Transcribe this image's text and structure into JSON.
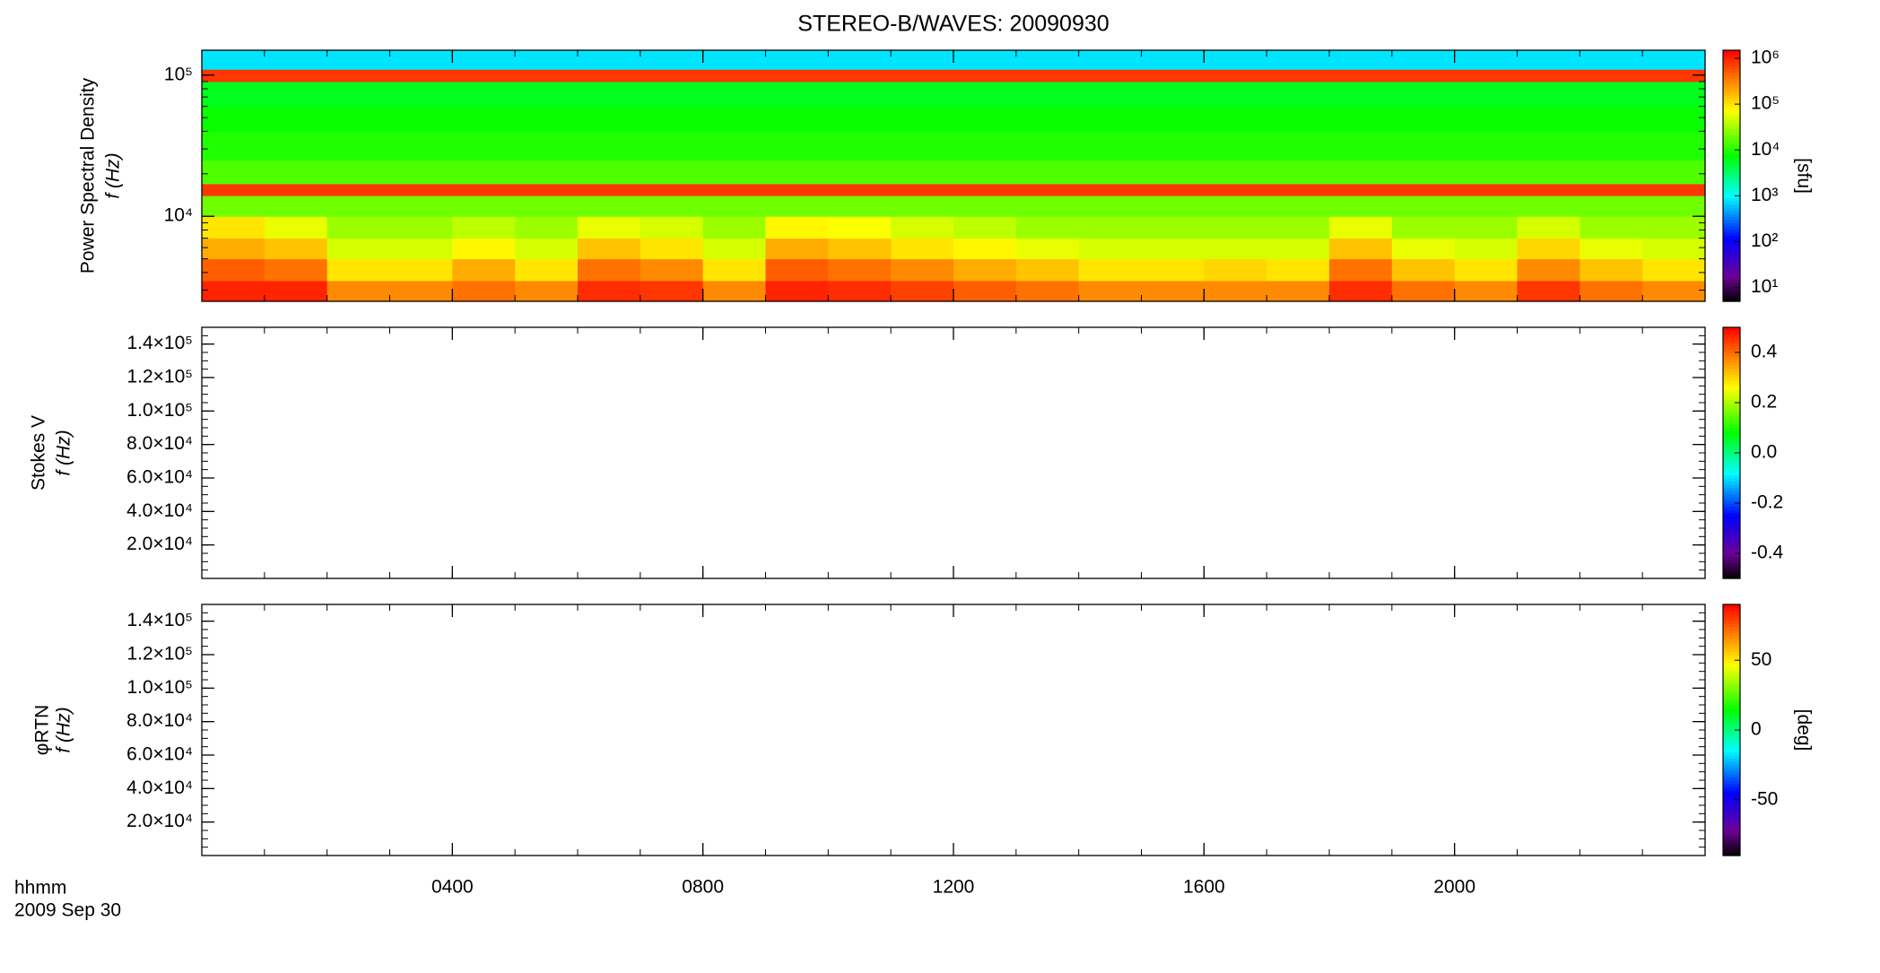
{
  "chart_data": [
    {
      "type": "heatmap",
      "title": "STEREO-B/WAVES: 20090930",
      "ylabel": [
        "Power Spectral Density",
        "f (Hz)"
      ],
      "yscale": "log",
      "ylim": [
        2500,
        150000
      ],
      "yticks": [
        {
          "value": 10000,
          "label": "10⁴"
        },
        {
          "value": 100000,
          "label": "10⁵"
        }
      ],
      "cscale": "log",
      "clim": [
        5,
        1500000
      ],
      "cticks": [
        {
          "value": 10,
          "label": "10¹"
        },
        {
          "value": 100,
          "label": "10²"
        },
        {
          "value": 1000,
          "label": "10³"
        },
        {
          "value": 10000,
          "label": "10⁴"
        },
        {
          "value": 100000,
          "label": "10⁵"
        },
        {
          "value": 1000000,
          "label": "10⁶"
        }
      ],
      "clabel": "[sfu]",
      "x": [
        0,
        1,
        2,
        3,
        4,
        5,
        6,
        7,
        8,
        9,
        10,
        11,
        12,
        13,
        14,
        15,
        16,
        17,
        18,
        19,
        20,
        21,
        22,
        23,
        24
      ],
      "y": [
        2500,
        3500,
        5000,
        7000,
        10000,
        14000,
        17000,
        25000,
        40000,
        60000,
        90000,
        110000,
        150000
      ],
      "z": [
        [
          1000000,
          1000000,
          300000,
          300000,
          400000,
          300000,
          900000,
          800000,
          300000,
          1000000,
          900000,
          700000,
          500000,
          400000,
          300000,
          300000,
          300000,
          300000,
          900000,
          400000,
          300000,
          800000,
          400000,
          300000
        ],
        [
          500000,
          400000,
          100000,
          100000,
          200000,
          100000,
          400000,
          300000,
          100000,
          500000,
          400000,
          300000,
          200000,
          150000,
          100000,
          100000,
          120000,
          100000,
          400000,
          150000,
          100000,
          300000,
          150000,
          100000
        ],
        [
          200000,
          150000,
          50000,
          50000,
          80000,
          50000,
          150000,
          100000,
          50000,
          200000,
          150000,
          100000,
          80000,
          60000,
          50000,
          50000,
          50000,
          50000,
          150000,
          60000,
          50000,
          120000,
          60000,
          50000
        ],
        [
          100000,
          60000,
          30000,
          30000,
          40000,
          30000,
          60000,
          50000,
          30000,
          80000,
          70000,
          50000,
          40000,
          30000,
          30000,
          30000,
          30000,
          30000,
          60000,
          30000,
          30000,
          50000,
          30000,
          30000
        ],
        [
          20000,
          20000,
          20000,
          20000,
          20000,
          20000,
          20000,
          20000,
          20000,
          20000,
          20000,
          20000,
          20000,
          20000,
          20000,
          20000,
          20000,
          20000,
          20000,
          20000,
          20000,
          20000,
          20000,
          20000
        ],
        [
          800000,
          800000,
          800000,
          800000,
          800000,
          800000,
          800000,
          800000,
          800000,
          800000,
          800000,
          800000,
          800000,
          800000,
          800000,
          800000,
          800000,
          800000,
          800000,
          800000,
          800000,
          800000,
          800000,
          800000
        ],
        [
          15000,
          15000,
          15000,
          15000,
          15000,
          15000,
          15000,
          15000,
          15000,
          15000,
          15000,
          15000,
          15000,
          15000,
          15000,
          15000,
          15000,
          15000,
          15000,
          15000,
          15000,
          15000,
          15000,
          15000
        ],
        [
          10000,
          10000,
          10000,
          10000,
          10000,
          10000,
          10000,
          10000,
          10000,
          10000,
          10000,
          10000,
          10000,
          10000,
          10000,
          10000,
          10000,
          10000,
          10000,
          10000,
          10000,
          10000,
          10000,
          10000
        ],
        [
          8000,
          8000,
          8000,
          8000,
          8000,
          8000,
          8000,
          8000,
          8000,
          8000,
          8000,
          8000,
          8000,
          8000,
          8000,
          8000,
          8000,
          8000,
          8000,
          8000,
          8000,
          8000,
          8000,
          8000
        ],
        [
          6000,
          6000,
          6000,
          6000,
          6000,
          6000,
          6000,
          6000,
          6000,
          6000,
          6000,
          6000,
          6000,
          6000,
          6000,
          6000,
          6000,
          6000,
          6000,
          6000,
          6000,
          6000,
          6000,
          6000
        ],
        [
          800000,
          800000,
          800000,
          800000,
          800000,
          800000,
          800000,
          800000,
          800000,
          800000,
          800000,
          800000,
          800000,
          800000,
          800000,
          800000,
          800000,
          800000,
          800000,
          800000,
          800000,
          800000,
          800000,
          800000
        ],
        [
          800,
          800,
          800,
          800,
          800,
          800,
          800,
          800,
          800,
          800,
          800,
          800,
          800,
          800,
          800,
          800,
          800,
          800,
          800,
          800,
          800,
          800,
          800,
          800
        ]
      ]
    },
    {
      "type": "heatmap",
      "ylabel": [
        "Stokes V",
        "f (Hz)"
      ],
      "yscale": "linear",
      "ylim": [
        0,
        150000
      ],
      "yticks": [
        {
          "value": 20000,
          "label": "2.0×10⁴"
        },
        {
          "value": 40000,
          "label": "4.0×10⁴"
        },
        {
          "value": 60000,
          "label": "6.0×10⁴"
        },
        {
          "value": 80000,
          "label": "8.0×10⁴"
        },
        {
          "value": 100000,
          "label": "1.0×10⁵"
        },
        {
          "value": 120000,
          "label": "1.2×10⁵"
        },
        {
          "value": 140000,
          "label": "1.4×10⁵"
        }
      ],
      "cscale": "linear",
      "clim": [
        -0.5,
        0.5
      ],
      "cticks": [
        {
          "value": -0.4,
          "label": "-0.4"
        },
        {
          "value": -0.2,
          "label": "-0.2"
        },
        {
          "value": 0,
          "label": "0.0"
        },
        {
          "value": 0.2,
          "label": "0.2"
        },
        {
          "value": 0.4,
          "label": "0.4"
        }
      ]
    },
    {
      "type": "heatmap",
      "ylabel": [
        "φRTN",
        "f (Hz)"
      ],
      "yscale": "linear",
      "ylim": [
        0,
        150000
      ],
      "yticks": [
        {
          "value": 20000,
          "label": "2.0×10⁴"
        },
        {
          "value": 40000,
          "label": "4.0×10⁴"
        },
        {
          "value": 60000,
          "label": "6.0×10⁴"
        },
        {
          "value": 80000,
          "label": "8.0×10⁴"
        },
        {
          "value": 100000,
          "label": "1.0×10⁵"
        },
        {
          "value": 120000,
          "label": "1.2×10⁵"
        },
        {
          "value": 140000,
          "label": "1.4×10⁵"
        }
      ],
      "cscale": "linear",
      "clim": [
        -90,
        90
      ],
      "cticks": [
        -50,
        0,
        50
      ],
      "clabel": "[deg]",
      "xlim": [
        0,
        24
      ],
      "xticks": [
        {
          "value": 4,
          "label": "0400"
        },
        {
          "value": 8,
          "label": "0800"
        },
        {
          "value": 12,
          "label": "1200"
        },
        {
          "value": 16,
          "label": "1600"
        },
        {
          "value": 20,
          "label": "2000"
        }
      ],
      "xlabel": "hhmm",
      "date": "2009 Sep 30"
    }
  ]
}
